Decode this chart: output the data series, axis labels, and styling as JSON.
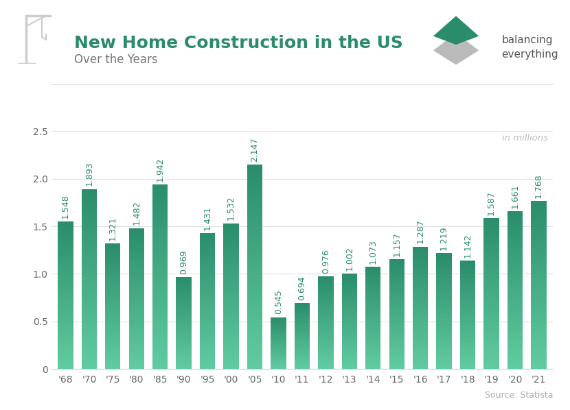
{
  "title": "New Home Construction in the US",
  "subtitle": "Over the Years",
  "source": "Source: Statista",
  "annotation": "in millions",
  "categories": [
    "'68",
    "'70",
    "'75",
    "'80",
    "'85",
    "'90",
    "'95",
    "'00",
    "'05",
    "'10",
    "'11",
    "'12",
    "'13",
    "'14",
    "'15",
    "'16",
    "'17",
    "'18",
    "'19",
    "'20",
    "'21"
  ],
  "values": [
    1.548,
    1.893,
    1.321,
    1.482,
    1.942,
    0.969,
    1.431,
    1.532,
    2.147,
    0.545,
    0.694,
    0.976,
    1.002,
    1.073,
    1.157,
    1.287,
    1.219,
    1.142,
    1.587,
    1.661,
    1.768
  ],
  "bar_color_top": "#2a8c6a",
  "bar_color_bottom": "#60cba0",
  "title_color": "#2a8c6a",
  "subtitle_color": "#777777",
  "axis_color": "#cccccc",
  "label_color": "#2a8c6a",
  "source_color": "#aaaaaa",
  "annotation_color": "#bbbbbb",
  "background_color": "#ffffff",
  "ylim": [
    0,
    2.5
  ],
  "yticks": [
    0,
    0.5,
    1.0,
    1.5,
    2.0,
    2.5
  ],
  "title_fontsize": 18,
  "subtitle_fontsize": 12,
  "bar_label_fontsize": 9,
  "axis_fontsize": 10,
  "source_fontsize": 9
}
